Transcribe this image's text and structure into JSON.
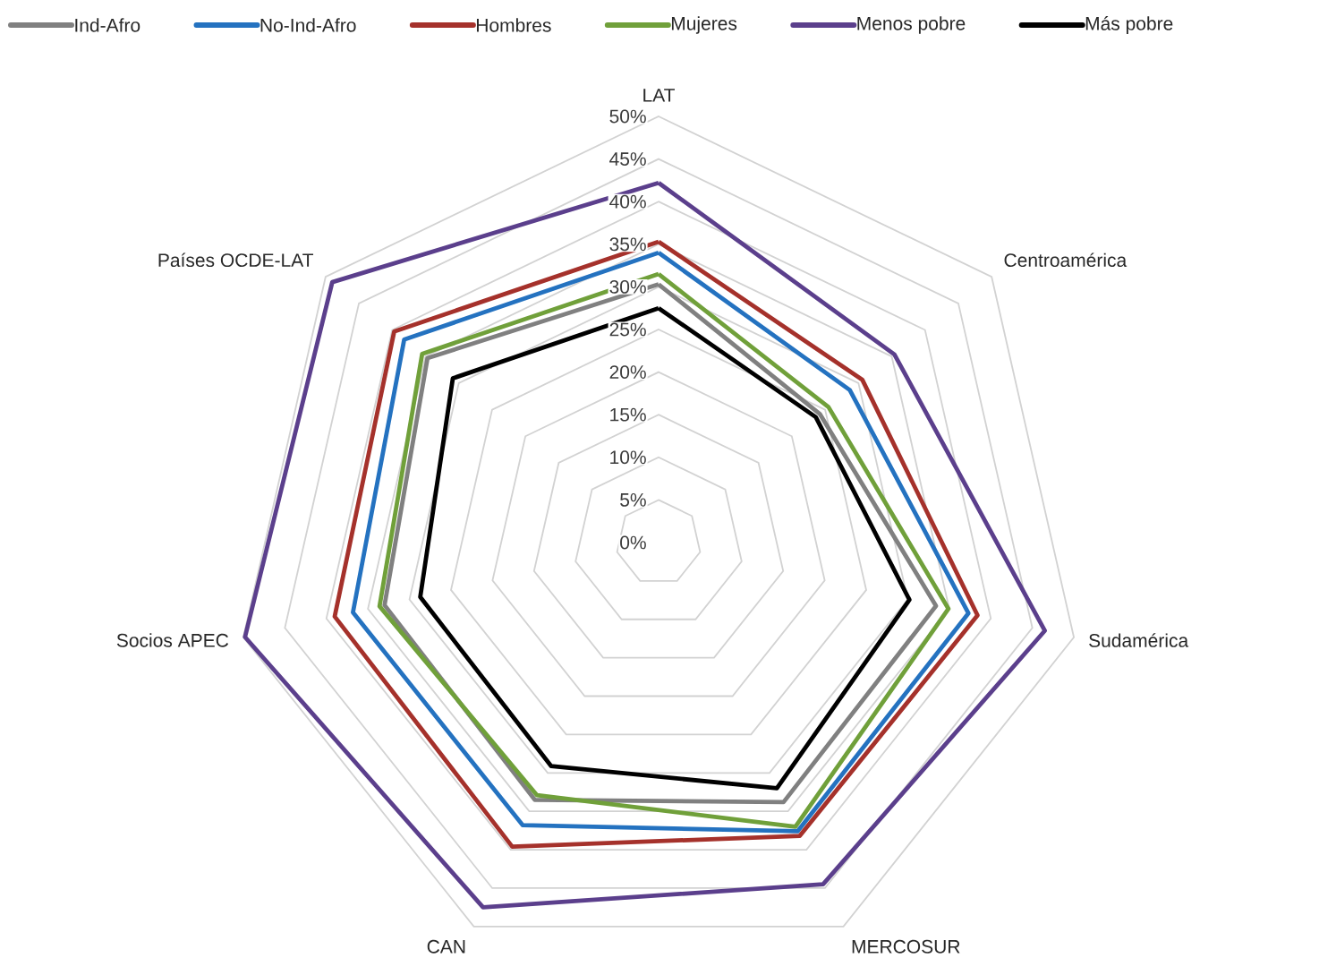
{
  "chart_data": {
    "type": "radar",
    "categories": [
      "LAT",
      "Centroamérica",
      "Sudamérica",
      "MERCOSUR",
      "CAN",
      "Socios APEC",
      "Países OCDE-LAT"
    ],
    "ylim": [
      0,
      50
    ],
    "yticks": [
      {
        "value": 0,
        "label": "0%"
      },
      {
        "value": 5,
        "label": "5%"
      },
      {
        "value": 10,
        "label": "10%"
      },
      {
        "value": 15,
        "label": "15%"
      },
      {
        "value": 20,
        "label": "20%"
      },
      {
        "value": 25,
        "label": "25%"
      },
      {
        "value": 30,
        "label": "30%"
      },
      {
        "value": 35,
        "label": "35%"
      },
      {
        "value": 40,
        "label": "40%"
      },
      {
        "value": 45,
        "label": "45%"
      },
      {
        "value": 50,
        "label": "50%"
      }
    ],
    "grid": true,
    "legend": "top",
    "marker": "none",
    "line_style": "solid",
    "series": [
      {
        "name": "Ind-Afro",
        "color": "#808080",
        "values": [
          30.3,
          24.2,
          33.4,
          33.8,
          33.5,
          33,
          34.7
        ]
      },
      {
        "name": "No-Ind-Afro",
        "color": "#2472c0",
        "values": [
          34,
          28.7,
          37.3,
          37.6,
          36.8,
          36.8,
          38.2
        ]
      },
      {
        "name": "Hombres",
        "color": "#a5312b",
        "values": [
          35.3,
          30.6,
          38.4,
          38.2,
          39.6,
          39,
          39.7
        ]
      },
      {
        "name": "Mujeres",
        "color": "#70a03a",
        "values": [
          31.5,
          25.5,
          34.9,
          37,
          32.9,
          33.6,
          35.5
        ]
      },
      {
        "name": "Menos pobre",
        "color": "#5b3f8c",
        "values": [
          42.2,
          35.4,
          46.5,
          44.5,
          47.5,
          49.8,
          49
        ]
      },
      {
        "name": "Más pobre",
        "color": "#000000",
        "values": [
          27.5,
          23.6,
          30.2,
          32,
          29.1,
          28.7,
          30.9
        ]
      }
    ]
  }
}
